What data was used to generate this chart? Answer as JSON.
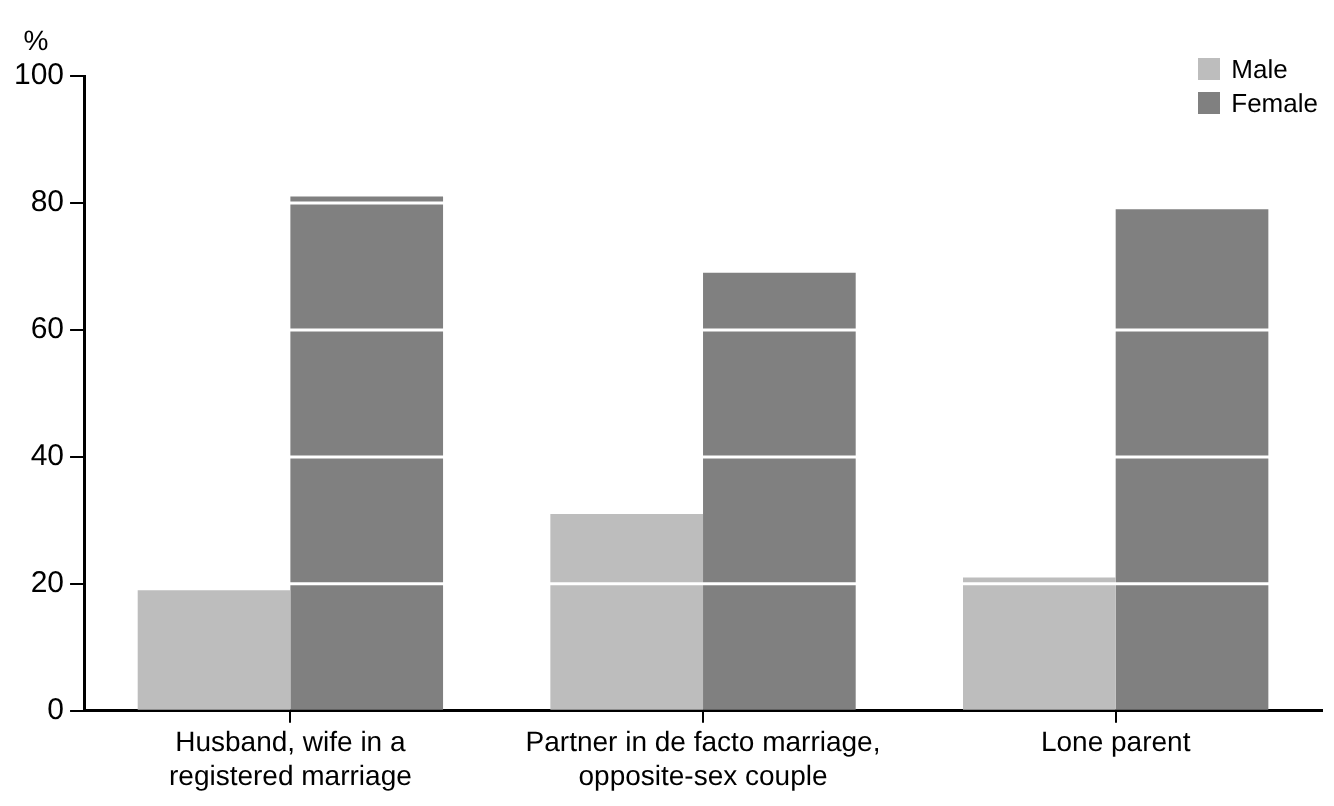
{
  "chart_data": {
    "type": "bar",
    "ylabel": "%",
    "categories": [
      "Husband, wife in a registered marriage",
      "Partner in de facto marriage, opposite-sex couple",
      "Lone parent"
    ],
    "series": [
      {
        "name": "Male",
        "color": "#bdbdbd",
        "values": [
          19,
          31,
          21
        ]
      },
      {
        "name": "Female",
        "color": "#808080",
        "values": [
          81,
          69,
          79
        ]
      }
    ],
    "ylim": [
      0,
      100
    ],
    "yticks": [
      0,
      20,
      40,
      60,
      80,
      100
    ],
    "grid": "y",
    "legend": "top right"
  }
}
